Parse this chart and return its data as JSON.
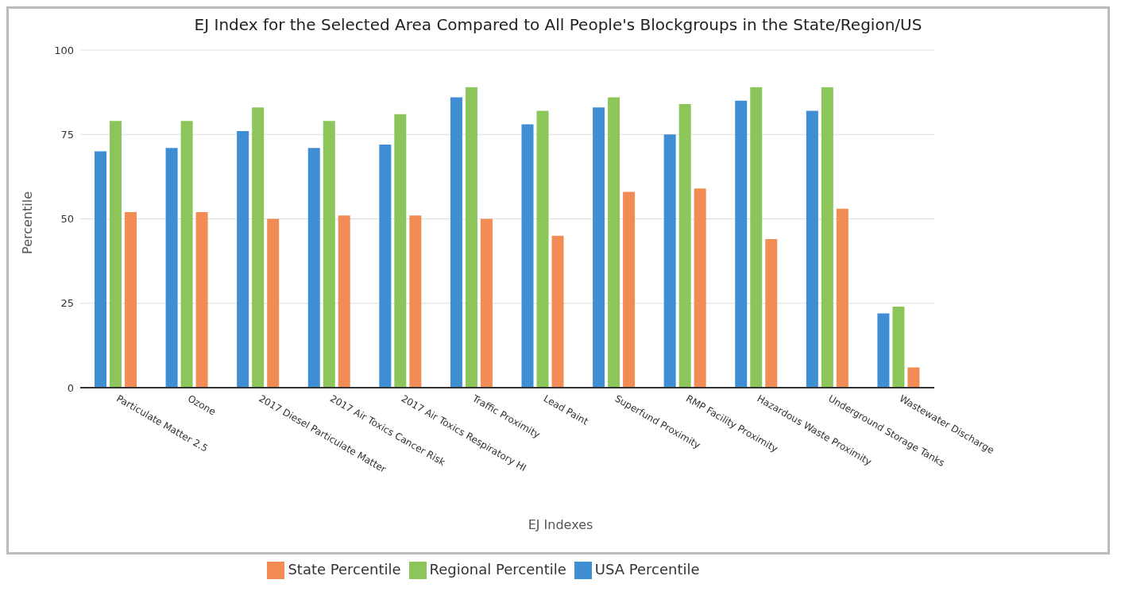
{
  "chart_data": {
    "type": "bar",
    "title": "EJ Index for the Selected Area Compared to All People's Blockgroups in the State/Region/US",
    "xlabel": "EJ Indexes",
    "ylabel": "Percentile",
    "categories": [
      "Particulate Matter 2.5",
      "Ozone",
      "2017 Diesel Particulate Matter",
      "2017 Air Toxics Cancer Risk",
      "2017 Air Toxics Respiratory HI",
      "Traffic Proximity",
      "Lead Paint",
      "Superfund Proximity",
      "RMP Facility Proximity",
      "Hazardous Waste Proximity",
      "Underground Storage Tanks",
      "Wastewater Discharge"
    ],
    "series": [
      {
        "name": "State Percentile",
        "color": "#f28c54",
        "values": [
          52,
          52,
          50,
          51,
          51,
          50,
          45,
          58,
          59,
          44,
          53,
          6
        ]
      },
      {
        "name": "Regional Percentile",
        "color": "#8cc65a",
        "values": [
          79,
          79,
          83,
          79,
          81,
          89,
          82,
          86,
          84,
          89,
          89,
          24
        ]
      },
      {
        "name": "USA Percentile",
        "color": "#3f8dd3",
        "values": [
          70,
          71,
          76,
          71,
          72,
          86,
          78,
          83,
          75,
          85,
          82,
          22
        ]
      }
    ],
    "ylim": [
      0,
      100
    ],
    "yticks": [
      0,
      25,
      50,
      75,
      100
    ],
    "grid": "y",
    "legend": "bottom"
  }
}
